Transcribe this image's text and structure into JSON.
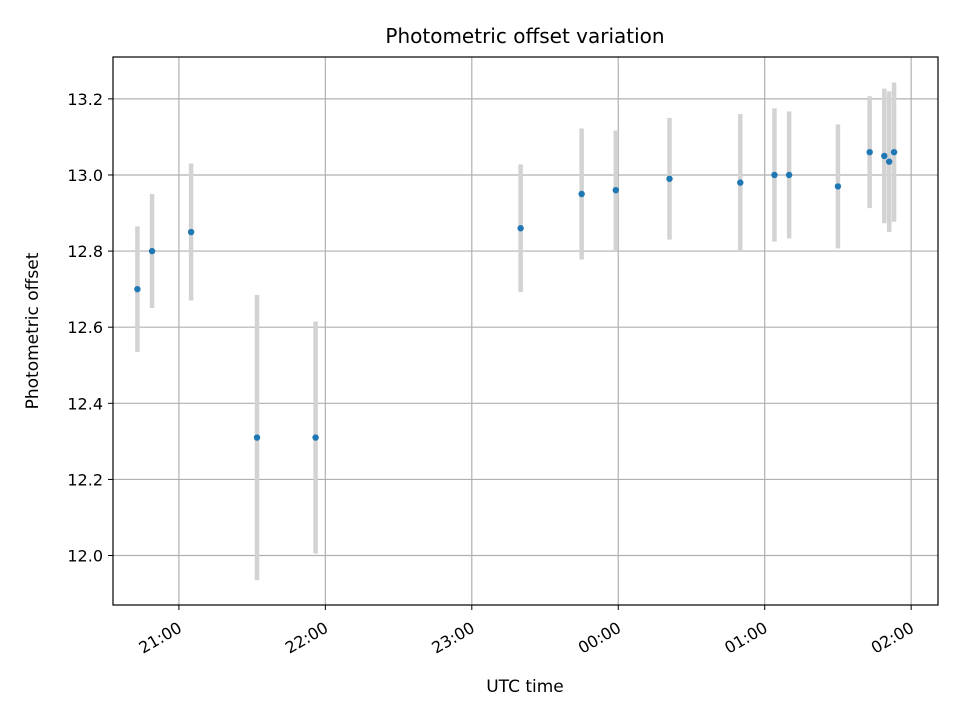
{
  "chart_data": {
    "type": "scatter",
    "title": "Photometric offset variation",
    "xlabel": "UTC time",
    "ylabel": "Photometric offset",
    "x_tick_labels": [
      "21:00",
      "22:00",
      "23:00",
      "00:00",
      "01:00",
      "02:00"
    ],
    "y_tick_labels": [
      "12.0",
      "12.2",
      "12.4",
      "12.6",
      "12.8",
      "13.0",
      "13.2"
    ],
    "x_axis_type": "time",
    "xlim": [
      "20:33",
      "02:11"
    ],
    "ylim": [
      11.87,
      13.31
    ],
    "grid": true,
    "colors": {
      "marker": "#1f77b4",
      "errorbar": "#d3d3d3"
    },
    "points": [
      {
        "time": "20:49",
        "y": 12.8,
        "err": 0.15
      },
      {
        "time": "20:43",
        "y": 12.7,
        "err": 0.165
      },
      {
        "time": "21:05",
        "y": 12.85,
        "err": 0.18
      },
      {
        "time": "21:32",
        "y": 12.31,
        "err": 0.375
      },
      {
        "time": "21:56",
        "y": 12.31,
        "err": 0.305
      },
      {
        "time": "23:20",
        "y": 12.86,
        "err": 0.168
      },
      {
        "time": "23:45",
        "y": 12.95,
        "err": 0.172
      },
      {
        "time": "23:59",
        "y": 12.96,
        "err": 0.157
      },
      {
        "time": "00:21",
        "y": 12.99,
        "err": 0.16
      },
      {
        "time": "00:50",
        "y": 12.98,
        "err": 0.18
      },
      {
        "time": "01:04",
        "y": 13.0,
        "err": 0.175
      },
      {
        "time": "01:10",
        "y": 13.0,
        "err": 0.167
      },
      {
        "time": "01:30",
        "y": 12.97,
        "err": 0.163
      },
      {
        "time": "01:43",
        "y": 13.06,
        "err": 0.147
      },
      {
        "time": "01:49",
        "y": 13.05,
        "err": 0.177
      },
      {
        "time": "01:51",
        "y": 13.035,
        "err": 0.185
      },
      {
        "time": "01:53",
        "y": 13.06,
        "err": 0.183
      }
    ]
  }
}
